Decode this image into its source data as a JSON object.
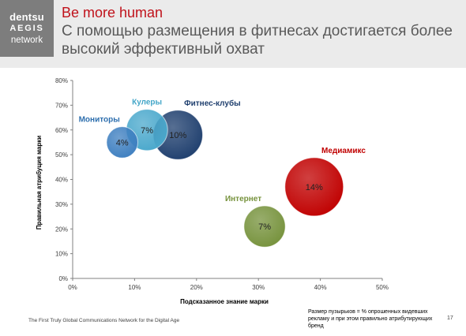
{
  "header": {
    "logo": {
      "line1": "dentsu",
      "line2": "AEGIS",
      "line3": "network"
    },
    "brand_title": "Be more human",
    "subtitle": "С помощью размещения в фитнесах достигается более высокий эффективный охват"
  },
  "chart_data": {
    "type": "scatter",
    "subtype": "bubble",
    "xlabel": "Подсказанное знание марки",
    "ylabel": "Правильная атрибуция марки",
    "xlim": [
      0,
      50
    ],
    "ylim": [
      0,
      80
    ],
    "x_ticks": [
      "0%",
      "10%",
      "20%",
      "30%",
      "40%",
      "50%"
    ],
    "y_ticks": [
      "0%",
      "10%",
      "20%",
      "30%",
      "40%",
      "50%",
      "60%",
      "70%",
      "80%"
    ],
    "grid": false,
    "series": [
      {
        "name": "Мониторы",
        "x": 8,
        "y": 55,
        "size": 4,
        "label": "4%",
        "color": "#3e7fc0",
        "name_color": "#2e6fae",
        "label_pos": "above-left"
      },
      {
        "name": "Кулеры",
        "x": 12,
        "y": 60,
        "size": 7,
        "label": "7%",
        "color": "#4aa8cc",
        "name_color": "#43a6c8",
        "label_pos": "above"
      },
      {
        "name": "Фитнес-клубы",
        "x": 17,
        "y": 58,
        "size": 10,
        "label": "10%",
        "color": "#1f3f6e",
        "name_color": "#1f3f6e",
        "label_pos": "above-right"
      },
      {
        "name": "Медиамикс",
        "x": 39,
        "y": 37,
        "size": 14,
        "label": "14%",
        "color": "#c00000",
        "name_color": "#c00000",
        "label_pos": "above-right"
      },
      {
        "name": "Интернет",
        "x": 31,
        "y": 21,
        "size": 7,
        "label": "7%",
        "color": "#76923c",
        "name_color": "#76923c",
        "label_pos": "above-left"
      }
    ]
  },
  "footer": {
    "left_text": "The First Truly Global Communications Network for the Digital Age",
    "note": "Размер пузырьков = % опрошенных видевших рекламу и при этом правильно атрибутирующих бренд",
    "page_number": "17"
  }
}
